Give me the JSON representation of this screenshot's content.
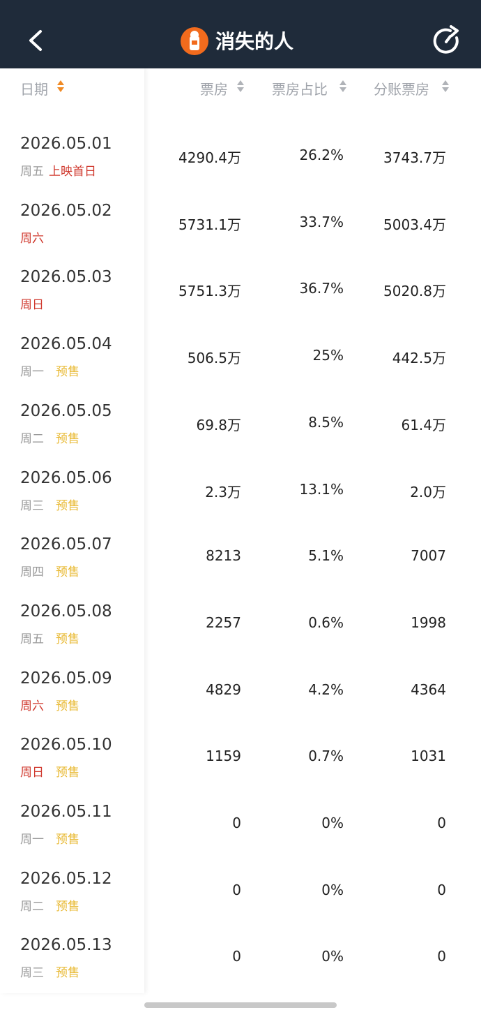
{
  "header": {
    "title": "消失的人"
  },
  "table": {
    "columns": [
      "日期",
      "票房",
      "票房占比",
      "分账票房"
    ],
    "rows": [
      {
        "date": "2026.05.01",
        "weekday": "周五",
        "weekday_color": "#999999",
        "tag": "上映首日",
        "tag_color": "#d0392e",
        "box_office": "4290.4万",
        "share": "26.2%",
        "split": "3743.7万"
      },
      {
        "date": "2026.05.02",
        "weekday": "周六",
        "weekday_color": "#d0392e",
        "box_office": "5731.1万",
        "share": "33.7%",
        "split": "5003.4万"
      },
      {
        "date": "2026.05.03",
        "weekday": "周日",
        "weekday_color": "#d0392e",
        "box_office": "5751.3万",
        "share": "36.7%",
        "split": "5020.8万"
      },
      {
        "date": "2026.05.04",
        "weekday": "周一",
        "weekday_color": "#999999",
        "tag": "预售",
        "tag_color": "#e8b830",
        "box_office": "506.5万",
        "share": "25%",
        "split": "442.5万"
      },
      {
        "date": "2026.05.05",
        "weekday": "周二",
        "weekday_color": "#999999",
        "tag": "预售",
        "tag_color": "#e8b830",
        "box_office": "69.8万",
        "share": "8.5%",
        "split": "61.4万"
      },
      {
        "date": "2026.05.06",
        "weekday": "周三",
        "weekday_color": "#999999",
        "tag": "预售",
        "tag_color": "#e8b830",
        "box_office": "2.3万",
        "share": "13.1%",
        "split": "2.0万"
      },
      {
        "date": "2026.05.07",
        "weekday": "周四",
        "weekday_color": "#999999",
        "tag": "预售",
        "tag_color": "#e8b830",
        "box_office": "8213",
        "share": "5.1%",
        "split": "7007"
      },
      {
        "date": "2026.05.08",
        "weekday": "周五",
        "weekday_color": "#999999",
        "tag": "预售",
        "tag_color": "#e8b830",
        "box_office": "2257",
        "share": "0.6%",
        "split": "1998"
      },
      {
        "date": "2026.05.09",
        "weekday": "周六",
        "weekday_color": "#d0392e",
        "tag": "预售",
        "tag_color": "#e8b830",
        "box_office": "4829",
        "share": "4.2%",
        "split": "4364"
      },
      {
        "date": "2026.05.10",
        "weekday": "周日",
        "weekday_color": "#d0392e",
        "tag": "预售",
        "tag_color": "#e8b830",
        "box_office": "1159",
        "share": "0.7%",
        "split": "1031"
      },
      {
        "date": "2026.05.11",
        "weekday": "周一",
        "weekday_color": "#999999",
        "tag": "预售",
        "tag_color": "#e8b830",
        "box_office": "0",
        "share": "0%",
        "split": "0"
      },
      {
        "date": "2026.05.12",
        "weekday": "周二",
        "weekday_color": "#999999",
        "tag": "预售",
        "tag_color": "#e8b830",
        "box_office": "0",
        "share": "0%",
        "split": "0"
      },
      {
        "date": "2026.05.13",
        "weekday": "周三",
        "weekday_color": "#999999",
        "tag": "预售",
        "tag_color": "#e8b830",
        "box_office": "0",
        "share": "0%",
        "split": "0"
      }
    ]
  }
}
